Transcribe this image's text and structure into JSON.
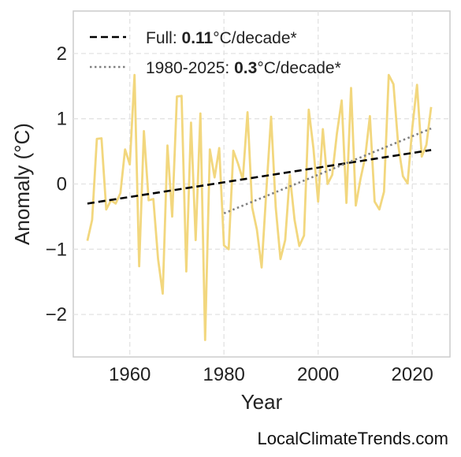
{
  "chart_data": {
    "type": "line",
    "title": "",
    "xlabel": "Year",
    "ylabel": "Anomaly (°C)",
    "xlim": [
      1948,
      2028
    ],
    "ylim": [
      -2.65,
      2.65
    ],
    "xticks": [
      1960,
      1980,
      2000,
      2020
    ],
    "yticks": [
      -2,
      -1,
      0,
      1,
      2
    ],
    "ytick_labels": [
      "−2",
      "−1",
      "0",
      "1",
      "2"
    ],
    "grid": true,
    "legend_position": "top-left",
    "colors": {
      "series": "#F2D77E",
      "full_trend": "#000000",
      "recent_trend": "#808080"
    },
    "x": [
      1951,
      1952,
      1953,
      1954,
      1955,
      1956,
      1957,
      1958,
      1959,
      1960,
      1961,
      1962,
      1963,
      1964,
      1965,
      1966,
      1967,
      1968,
      1969,
      1970,
      1971,
      1972,
      1973,
      1974,
      1975,
      1976,
      1977,
      1978,
      1979,
      1980,
      1981,
      1982,
      1983,
      1984,
      1985,
      1986,
      1987,
      1988,
      1989,
      1990,
      1991,
      1992,
      1993,
      1994,
      1995,
      1996,
      1997,
      1998,
      1999,
      2000,
      2001,
      2002,
      2003,
      2004,
      2005,
      2006,
      2007,
      2008,
      2009,
      2010,
      2011,
      2012,
      2013,
      2014,
      2015,
      2016,
      2017,
      2018,
      2019,
      2020,
      2021,
      2022,
      2023,
      2024
    ],
    "y": [
      -0.87,
      -0.55,
      0.69,
      0.7,
      -0.39,
      -0.25,
      -0.3,
      -0.14,
      0.53,
      0.3,
      1.67,
      -1.26,
      0.81,
      -0.25,
      -0.23,
      -1.15,
      -1.68,
      0.59,
      -0.5,
      1.34,
      1.35,
      -1.34,
      0.94,
      -0.86,
      1.08,
      -2.39,
      0.53,
      0.1,
      0.55,
      -0.94,
      -1.0,
      0.51,
      0.31,
      0.07,
      1.1,
      -0.36,
      -0.7,
      -1.28,
      -0.1,
      1.03,
      -0.36,
      -1.15,
      -0.86,
      0.14,
      -0.55,
      -0.95,
      -0.79,
      1.14,
      0.55,
      -0.27,
      0.84,
      0.0,
      0.14,
      0.78,
      1.28,
      -0.29,
      1.47,
      -0.33,
      0.08,
      0.41,
      1.04,
      -0.27,
      -0.39,
      -0.12,
      1.67,
      1.53,
      0.6,
      0.12,
      0.01,
      0.86,
      1.52,
      0.42,
      0.6,
      1.18
    ],
    "trend_full": {
      "x": [
        1951,
        2024
      ],
      "y": [
        -0.3,
        0.52
      ]
    },
    "trend_recent": {
      "x": [
        1980,
        2024
      ],
      "y": [
        -0.45,
        0.85
      ]
    },
    "legend": [
      {
        "prefix": "Full: ",
        "value": "0.11",
        "suffix": "°C/decade*"
      },
      {
        "prefix": "1980-2025: ",
        "value": "0.3",
        "suffix": "°C/decade*"
      }
    ]
  },
  "watermark": "LocalClimateTrends.com"
}
